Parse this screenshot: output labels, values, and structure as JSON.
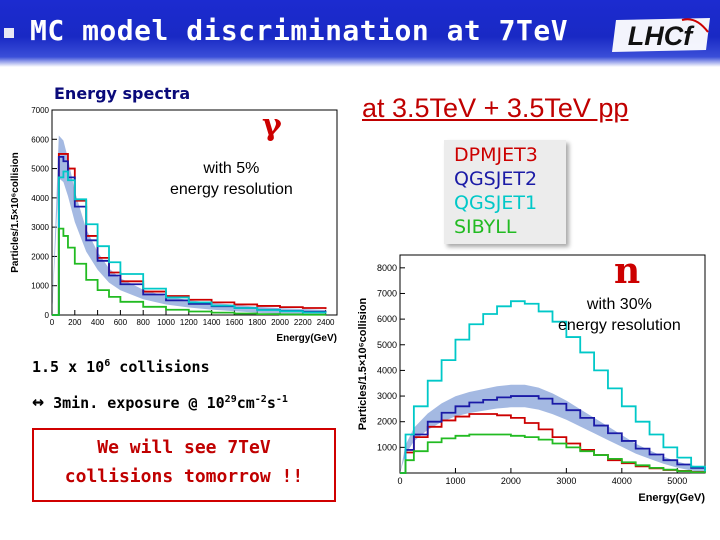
{
  "slide": {
    "title": "MC model discrimination at 7TeV",
    "logo_text": "LHCf",
    "left_subtitle": "Energy spectra",
    "gamma_symbol": "γ",
    "gamma_resolution_line1": "with 5%",
    "gamma_resolution_line2": "energy resolution",
    "right_heading": "at 3.5TeV + 3.5TeV pp",
    "neutron_symbol": "n",
    "neutron_resolution_line1": "with 30%",
    "neutron_resolution_line2": "energy resolution",
    "collisions_text": "1.5  x 10",
    "collisions_exp": "6",
    "collisions_suffix": " collisions",
    "exposure_arrow": "↔",
    "exposure_text": " 3min. exposure @ 10",
    "exposure_exp1": "29",
    "exposure_mid": "cm",
    "exposure_exp2": "-2",
    "exposure_mid2": "s",
    "exposure_exp3": "-1",
    "tomorrow_line1": "We will see 7TeV",
    "tomorrow_line2": "collisions tomorrow !!"
  },
  "legend": [
    {
      "label": "DPMJET3",
      "color": "#cc0000"
    },
    {
      "label": "QGSJET2",
      "color": "#1a1aa6"
    },
    {
      "label": "QGSJET1",
      "color": "#00c8c8"
    },
    {
      "label": "SIBYLL",
      "color": "#22bb22"
    }
  ],
  "chart_data": [
    {
      "type": "line",
      "title": "",
      "xlabel": "Energy(GeV)",
      "ylabel": "Particles/1.5×10⁶collision",
      "xlim": [
        0,
        2500
      ],
      "ylim": [
        0,
        7000
      ],
      "xticks": [
        "0",
        "200",
        "400",
        "600",
        "800",
        "1000",
        "1200",
        "1400",
        "1600",
        "1800",
        "2000",
        "2200",
        "2400"
      ],
      "yticks": [
        "0",
        "1000",
        "2000",
        "3000",
        "4000",
        "5000",
        "6000",
        "7000"
      ],
      "x": [
        0,
        60,
        100,
        140,
        200,
        300,
        400,
        500,
        600,
        800,
        1000,
        1200,
        1400,
        1600,
        1800,
        2000,
        2200,
        2400
      ],
      "series": [
        {
          "name": "DPMJET3",
          "color": "#cc0000",
          "values": [
            0,
            5500,
            5500,
            5000,
            3900,
            2700,
            1950,
            1450,
            1150,
            800,
            650,
            520,
            430,
            360,
            310,
            270,
            240,
            200
          ]
        },
        {
          "name": "QGSJET2",
          "color": "#1a1aa6",
          "band": true,
          "values": [
            0,
            5400,
            5250,
            4700,
            3700,
            2550,
            1850,
            1350,
            1050,
            700,
            500,
            380,
            300,
            240,
            180,
            140,
            110,
            80
          ]
        },
        {
          "name": "QGSJET1",
          "color": "#00c8c8",
          "values": [
            0,
            4700,
            4900,
            4600,
            3950,
            3100,
            2350,
            1800,
            1400,
            900,
            600,
            430,
            320,
            240,
            170,
            130,
            90,
            60
          ]
        },
        {
          "name": "SIBYLL",
          "color": "#22bb22",
          "values": [
            0,
            2950,
            2700,
            2300,
            1750,
            1200,
            850,
            620,
            450,
            280,
            180,
            120,
            80,
            50,
            30,
            20,
            10,
            5
          ]
        }
      ]
    },
    {
      "type": "line",
      "title": "",
      "xlabel": "Energy(GeV)",
      "ylabel": "Particles/1.5×10⁶collision",
      "xlim": [
        0,
        5500
      ],
      "ylim": [
        0,
        8500
      ],
      "xticks": [
        "0",
        "1000",
        "2000",
        "3000",
        "4000",
        "5000"
      ],
      "yticks": [
        "1000",
        "2000",
        "3000",
        "4000",
        "5000",
        "6000",
        "7000",
        "8000"
      ],
      "x": [
        0,
        100,
        250,
        500,
        750,
        1000,
        1250,
        1500,
        1750,
        2000,
        2250,
        2500,
        2750,
        3000,
        3250,
        3500,
        3750,
        4000,
        4250,
        4500,
        4750,
        5000,
        5250,
        5500
      ],
      "series": [
        {
          "name": "DPMJET3",
          "color": "#cc0000",
          "values": [
            0,
            800,
            1400,
            1800,
            2050,
            2200,
            2300,
            2300,
            2250,
            2150,
            1950,
            1700,
            1400,
            1150,
            900,
            700,
            500,
            380,
            260,
            180,
            120,
            80,
            40,
            20
          ]
        },
        {
          "name": "QGSJET2",
          "color": "#1a1aa6",
          "band": true,
          "values": [
            0,
            900,
            1500,
            2000,
            2350,
            2600,
            2750,
            2850,
            2950,
            3000,
            3000,
            2900,
            2700,
            2450,
            2150,
            1850,
            1550,
            1250,
            950,
            720,
            500,
            330,
            200,
            100
          ]
        },
        {
          "name": "QGSJET1",
          "color": "#00c8c8",
          "values": [
            0,
            1500,
            2600,
            3600,
            4400,
            5200,
            5800,
            6200,
            6500,
            6700,
            6600,
            6300,
            5900,
            5300,
            4700,
            4000,
            3300,
            2600,
            2000,
            1500,
            1000,
            600,
            250,
            50
          ]
        },
        {
          "name": "SIBYLL",
          "color": "#22bb22",
          "values": [
            0,
            500,
            850,
            1200,
            1350,
            1450,
            1500,
            1500,
            1500,
            1450,
            1400,
            1300,
            1150,
            1000,
            850,
            700,
            550,
            420,
            300,
            200,
            130,
            70,
            30,
            10
          ]
        }
      ]
    }
  ]
}
